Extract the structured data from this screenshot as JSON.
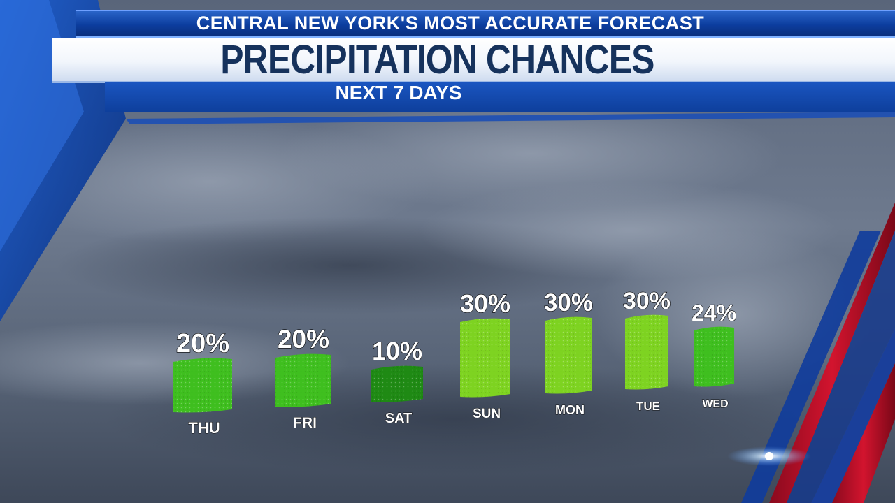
{
  "header": {
    "tagline": "CENTRAL NEW YORK'S MOST ACCURATE FORECAST",
    "title": "PRECIPITATION CHANCES",
    "subtitle": "NEXT 7 DAYS"
  },
  "colors": {
    "brand_blue": "#0e3f9c",
    "title_navy": "#16325c",
    "bar_green_light": "#7ed321",
    "bar_green_mid": "#3fbf1f",
    "bar_green_dark": "#1f8a14",
    "accent_red": "#c8102e"
  },
  "chart_data": {
    "type": "bar",
    "categories": [
      "THU",
      "FRI",
      "SAT",
      "SUN",
      "MON",
      "TUE",
      "WED"
    ],
    "values": [
      20,
      20,
      10,
      30,
      30,
      30,
      24
    ],
    "value_labels": [
      "20%",
      "20%",
      "10%",
      "30%",
      "30%",
      "30%",
      "24%"
    ],
    "unit": "%",
    "title": "PRECIPITATION CHANCES",
    "subtitle": "NEXT 7 DAYS",
    "ylim": [
      0,
      30
    ],
    "grid": false,
    "legend": "none"
  }
}
